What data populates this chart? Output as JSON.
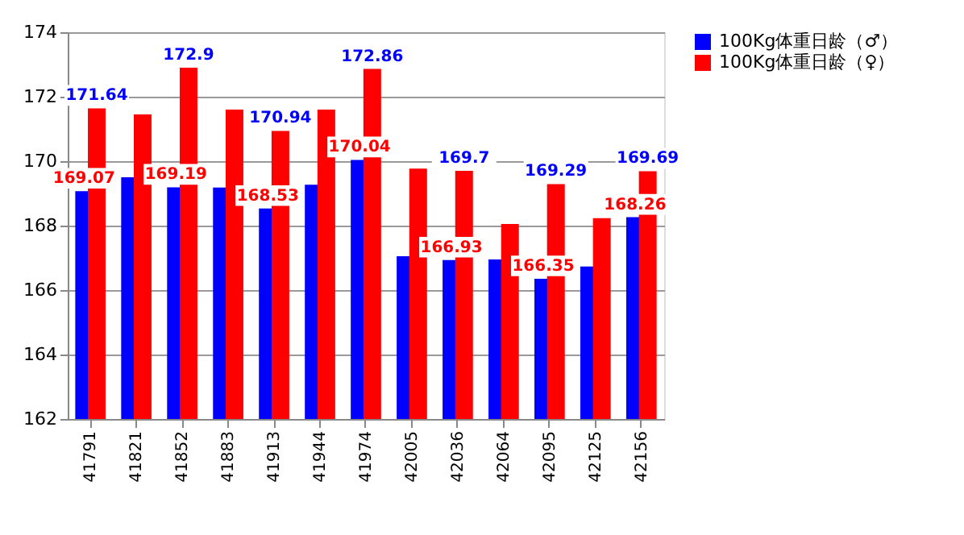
{
  "chart_data": {
    "type": "bar",
    "categories": [
      "41791",
      "41821",
      "41852",
      "41883",
      "41913",
      "41944",
      "41974",
      "42005",
      "42036",
      "42064",
      "42095",
      "42125",
      "42156"
    ],
    "series": [
      {
        "name": "100Kg体重日龄（♂）",
        "color": "#0000ff",
        "values": [
          169.07,
          169.5,
          169.19,
          169.18,
          168.53,
          169.27,
          170.04,
          167.05,
          166.93,
          166.95,
          166.35,
          166.73,
          168.26
        ],
        "value_labels": [
          "169.07",
          null,
          "169.19",
          null,
          "168.53",
          null,
          "170.04",
          null,
          "166.93",
          null,
          "166.35",
          null,
          "168.26"
        ]
      },
      {
        "name": "100Kg体重日龄（♀）",
        "color": "#ff0000",
        "values": [
          171.64,
          171.45,
          172.9,
          171.6,
          170.94,
          171.6,
          172.86,
          169.77,
          169.7,
          168.05,
          169.29,
          168.23,
          169.69
        ],
        "value_labels": [
          "171.64",
          null,
          "172.9",
          null,
          "170.94",
          null,
          "172.86",
          null,
          "169.7",
          null,
          "169.29",
          null,
          "169.69"
        ]
      }
    ],
    "ylim": [
      162,
      174
    ],
    "yticks": [
      162,
      164,
      166,
      168,
      170,
      172,
      174
    ],
    "grid": "y",
    "legend": "right"
  }
}
